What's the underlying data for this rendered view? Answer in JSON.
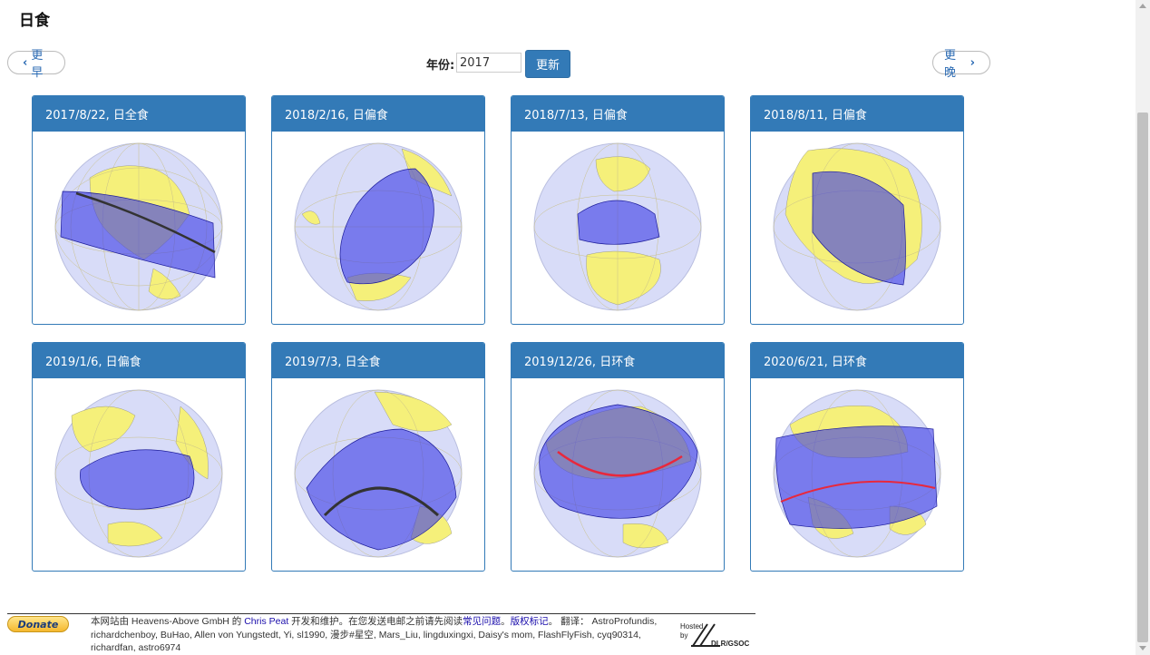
{
  "page": {
    "title": "日食"
  },
  "nav": {
    "prev_label": "更早",
    "next_label": "更晚",
    "year_label": "年份:",
    "year_value": "2017",
    "update_label": "更新"
  },
  "eclipses": [
    {
      "label": "2017/8/22, 日全食"
    },
    {
      "label": "2018/2/16, 日偏食"
    },
    {
      "label": "2018/7/13, 日偏食"
    },
    {
      "label": "2018/8/11, 日偏食"
    },
    {
      "label": "2019/1/6, 日偏食"
    },
    {
      "label": "2019/7/3, 日全食"
    },
    {
      "label": "2019/12/26, 日环食"
    },
    {
      "label": "2020/6/21, 日环食"
    }
  ],
  "footer": {
    "donate_label": "Donate",
    "text_1": "本网站由 Heavens-Above GmbH 的 ",
    "author_link": "Chris Peat",
    "text_2": " 开发和维护。在您发送电邮之前请先阅读",
    "faq_link": "常见问题",
    "text_3": "。",
    "copyright_link": "版权标记",
    "text_4": "。 翻译： AstroProfundis, richardchenboy, BuHao, Allen von Yungstedt, Yi, sl1990, 漫步#星空, Mars_Liu, lingduxingxi, Daisy's mom, FlashFlyFish, cyq90314, richardfan, astro6974",
    "hosted_line1": "Hosted",
    "hosted_line2": "by",
    "hosted_org": "DLR/GSOC"
  },
  "colors": {
    "accent": "#337ab7",
    "globe_ocean": "#d8dcf8",
    "land": "#f5f07a",
    "shadow": "#3a3ae6",
    "central_line_total": "#333333",
    "central_line_annular": "#e8283c"
  }
}
